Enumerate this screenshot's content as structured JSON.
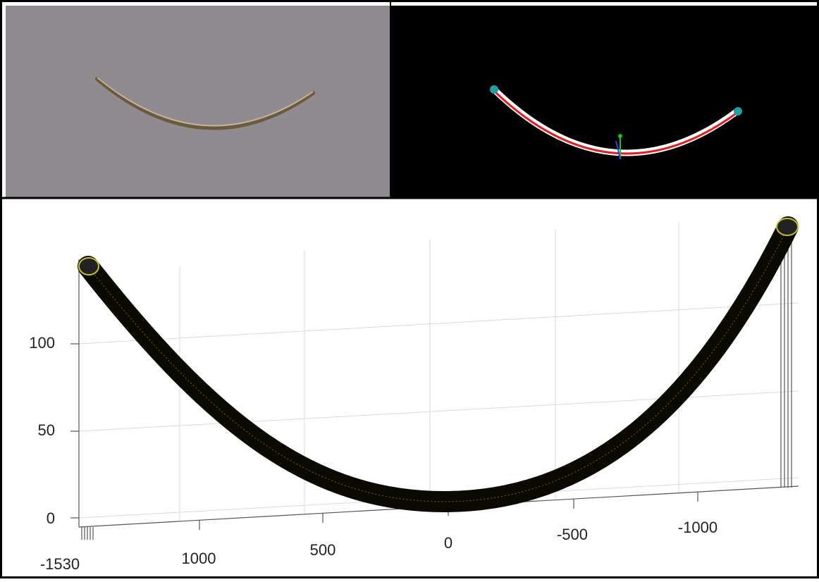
{
  "plot": {
    "z_ticks": [
      "100",
      "50",
      "0"
    ],
    "x_ticks": [
      "-1530",
      "1000",
      "500",
      "0",
      "-500",
      "-1000"
    ]
  }
}
